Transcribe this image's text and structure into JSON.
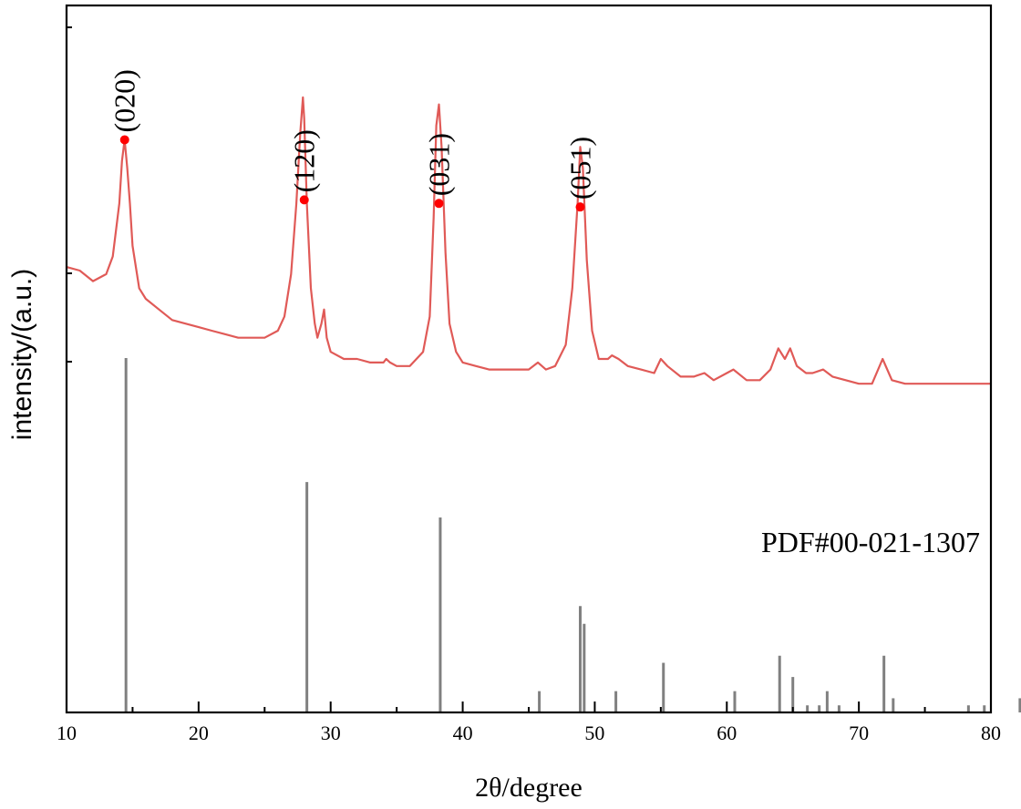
{
  "chart_data": {
    "type": "line",
    "title": "",
    "xlabel": "2θ/degree",
    "ylabel": "intensity/(a.u.)",
    "xlim": [
      10,
      80
    ],
    "ylim": [
      0,
      100
    ],
    "x_ticks": [
      10,
      20,
      30,
      40,
      50,
      60,
      70,
      80
    ],
    "x_minor_step": 5,
    "grid": false,
    "colors": {
      "pattern": "#e05a57",
      "marker": "#ff0000",
      "reference": "#808080",
      "axis": "#000000"
    },
    "series": [
      {
        "x": [
          10,
          11,
          12,
          13,
          13.5,
          14,
          14.2,
          14.4,
          14.6,
          14.8,
          15,
          15.5,
          16,
          17,
          18,
          19,
          20,
          21,
          22,
          23,
          24,
          25,
          26,
          26.5,
          27,
          27.4,
          27.7,
          27.9,
          28.0,
          28.2,
          28.5,
          28.8,
          29.0,
          29.3,
          29.5,
          29.7,
          30,
          31,
          32,
          33,
          34,
          34.2,
          34.5,
          35,
          36,
          37,
          37.5,
          37.8,
          38.0,
          38.2,
          38.4,
          38.7,
          39,
          39.5,
          40,
          41,
          42,
          43,
          44,
          45,
          45.7,
          46.3,
          47,
          47.8,
          48.3,
          48.7,
          48.9,
          49.1,
          49.4,
          49.8,
          50.3,
          51,
          51.3,
          51.8,
          52.5,
          53.5,
          54.5,
          55,
          55.5,
          56.5,
          57.5,
          58.3,
          59,
          60,
          60.5,
          61.5,
          62.5,
          63.3,
          63.9,
          64.4,
          64.8,
          65.3,
          66,
          66.5,
          67.3,
          68,
          69,
          70,
          71,
          71.8,
          72.5,
          73.5,
          75,
          77,
          80
        ],
        "y": [
          63,
          62.5,
          61,
          62,
          64.5,
          72,
          78,
          81,
          77,
          72,
          66,
          60,
          58.5,
          57,
          55.5,
          55,
          54.5,
          54,
          53.5,
          53,
          53,
          53,
          54,
          56,
          62,
          72,
          82,
          87,
          84,
          72,
          60,
          55,
          53,
          55,
          57,
          53,
          51,
          50,
          50,
          49.5,
          49.5,
          50,
          49.5,
          49,
          49,
          51,
          56,
          70,
          83,
          86,
          80,
          65,
          55,
          51,
          49.5,
          49,
          48.5,
          48.5,
          48.5,
          48.5,
          49.5,
          48.5,
          49,
          52,
          60,
          72,
          80,
          77,
          64,
          54,
          50,
          50,
          50.5,
          50,
          49,
          48.5,
          48,
          50,
          49,
          47.5,
          47.5,
          48,
          47,
          48,
          48.5,
          47,
          47,
          48.5,
          51.5,
          50,
          51.5,
          49,
          48,
          48,
          48.5,
          47.5,
          47,
          46.5,
          46.5,
          50,
          47,
          46.5,
          46.5,
          46.5,
          46.5
        ]
      }
    ],
    "peak_labels": [
      {
        "label": "(020)",
        "x": 14.4,
        "y": 81
      },
      {
        "label": "(120)",
        "x": 28.0,
        "y": 72.5
      },
      {
        "label": "(031)",
        "x": 38.2,
        "y": 72
      },
      {
        "label": "(051)",
        "x": 48.9,
        "y": 71.5
      }
    ],
    "reference": {
      "label": "PDF#00-021-1307",
      "x": [
        14.5,
        28.2,
        38.3,
        45.8,
        48.9,
        49.2,
        51.6,
        55.2,
        60.6,
        64.0,
        65.0,
        66.1,
        67.0,
        67.6,
        68.5,
        71.9,
        72.6,
        78.3,
        79.5,
        82.2
      ],
      "height": [
        100,
        65,
        55,
        6,
        30,
        25,
        6,
        14,
        6,
        16,
        10,
        2,
        2,
        6,
        2,
        16,
        4,
        2,
        2,
        4
      ]
    }
  }
}
